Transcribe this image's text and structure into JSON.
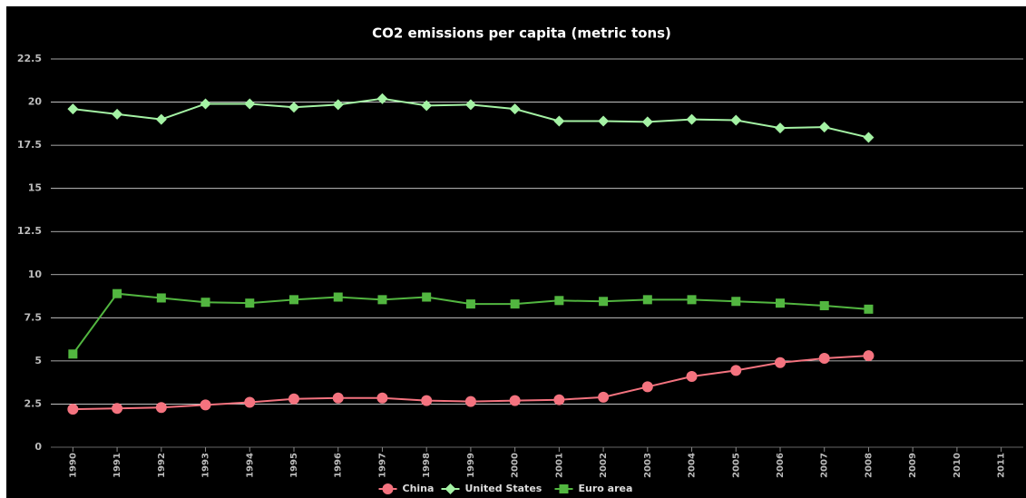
{
  "chart_data": {
    "type": "line",
    "title": "CO2 emissions per capita (metric tons)",
    "categories": [
      "1990",
      "1991",
      "1992",
      "1993",
      "1994",
      "1995",
      "1996",
      "1997",
      "1998",
      "1999",
      "2000",
      "2001",
      "2002",
      "2003",
      "2004",
      "2005",
      "2006",
      "2007",
      "2008",
      "2009",
      "2010",
      "2011"
    ],
    "series": [
      {
        "name": "China",
        "color": "#f4737f",
        "marker": "circle",
        "values": [
          2.2,
          2.25,
          2.3,
          2.45,
          2.6,
          2.8,
          2.85,
          2.85,
          2.7,
          2.65,
          2.7,
          2.75,
          2.9,
          3.5,
          4.1,
          4.45,
          4.9,
          5.15,
          5.3,
          null,
          null,
          null
        ]
      },
      {
        "name": "United States",
        "color": "#a4f2a4",
        "marker": "diamond",
        "values": [
          19.6,
          19.3,
          19.0,
          19.9,
          19.9,
          19.7,
          19.85,
          20.2,
          19.8,
          19.85,
          19.6,
          18.9,
          18.9,
          18.85,
          19.0,
          18.95,
          18.5,
          18.55,
          17.95,
          null,
          null,
          null
        ]
      },
      {
        "name": "Euro area",
        "color": "#52b640",
        "marker": "square",
        "values": [
          5.4,
          8.9,
          8.65,
          8.4,
          8.35,
          8.55,
          8.7,
          8.55,
          8.7,
          8.3,
          8.3,
          8.5,
          8.45,
          8.55,
          8.55,
          8.45,
          8.35,
          8.2,
          8.0,
          null,
          null,
          null
        ]
      }
    ],
    "ylim": [
      0,
      22.5
    ],
    "yticks": [
      0,
      2.5,
      5,
      7.5,
      10,
      12.5,
      15,
      17.5,
      20,
      22.5
    ],
    "grid": true,
    "legend": "bottom"
  }
}
